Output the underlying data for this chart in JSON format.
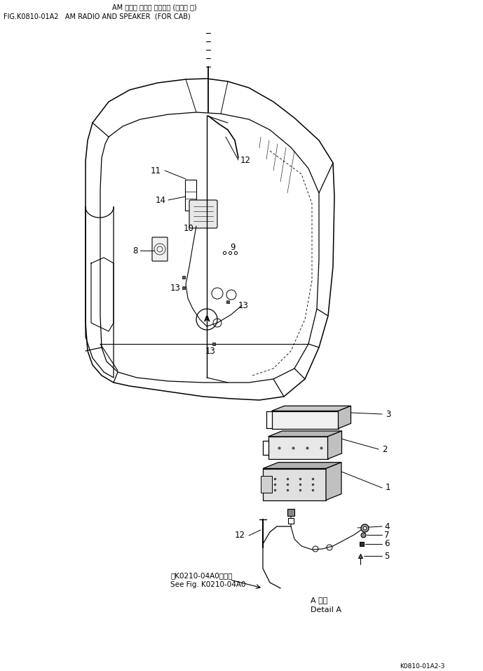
{
  "title_japanese": "AM ラジオ および スピーカ (キャブ 用)",
  "title_english": "FIG.K0810-01A2   AM RADIO AND SPEAKER  (FOR CAB)",
  "footer_text": "K0810-01A2-3",
  "bg_color": "#ffffff",
  "line_color": "#000000",
  "text_color": "#000000",
  "detail_labels": {
    "see_fig_japanese": "第K0210-04A0図参照",
    "see_fig_english": "See Fig. K0210-04A0",
    "detail_japanese": "A 詳細",
    "detail_english": "Detail A"
  }
}
